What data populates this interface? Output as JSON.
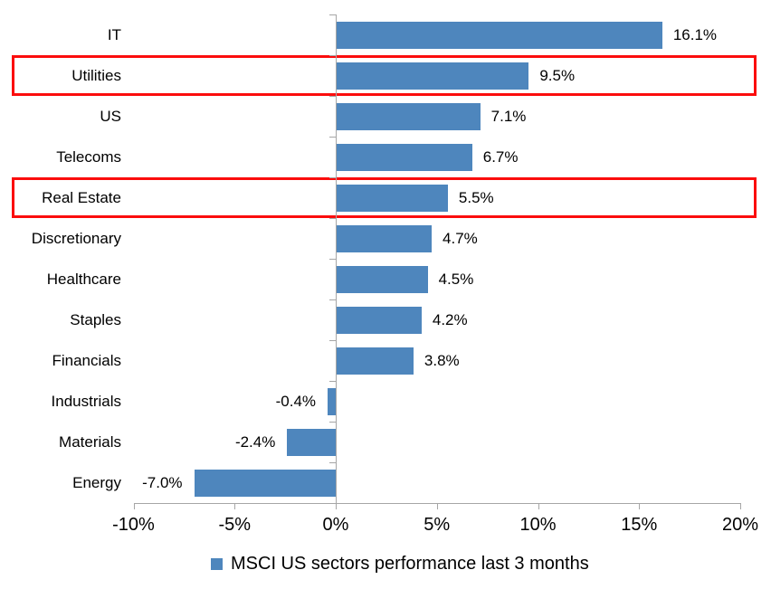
{
  "chart_data": {
    "type": "bar",
    "orientation": "horizontal",
    "title": "",
    "legend": {
      "label": "MSCI US sectors performance last 3 months",
      "position": "bottom"
    },
    "categories": [
      "IT",
      "Utilities",
      "US",
      "Telecoms",
      "Real Estate",
      "Discretionary",
      "Healthcare",
      "Staples",
      "Financials",
      "Industrials",
      "Materials",
      "Energy"
    ],
    "values": [
      16.1,
      9.5,
      7.1,
      6.7,
      5.5,
      4.7,
      4.5,
      4.2,
      3.8,
      -0.4,
      -2.4,
      -7.0
    ],
    "value_labels": [
      "16.1%",
      "9.5%",
      "7.1%",
      "6.7%",
      "5.5%",
      "4.7%",
      "4.5%",
      "4.2%",
      "3.8%",
      "-0.4%",
      "-2.4%",
      "-7.0%"
    ],
    "highlighted_categories": [
      "Utilities",
      "Real Estate"
    ],
    "x_axis": {
      "min": -10,
      "max": 20,
      "ticks": [
        "-10%",
        "-5%",
        "0%",
        "5%",
        "10%",
        "15%",
        "20%"
      ],
      "tick_values": [
        -10,
        -5,
        0,
        5,
        10,
        15,
        20
      ]
    },
    "grid": false,
    "value_labels_position": "outside-end",
    "colors": {
      "bar": "#4E86BD",
      "highlight_box": "#FB0D0D",
      "axis": "#A6A6A6",
      "text": "#000000"
    }
  }
}
